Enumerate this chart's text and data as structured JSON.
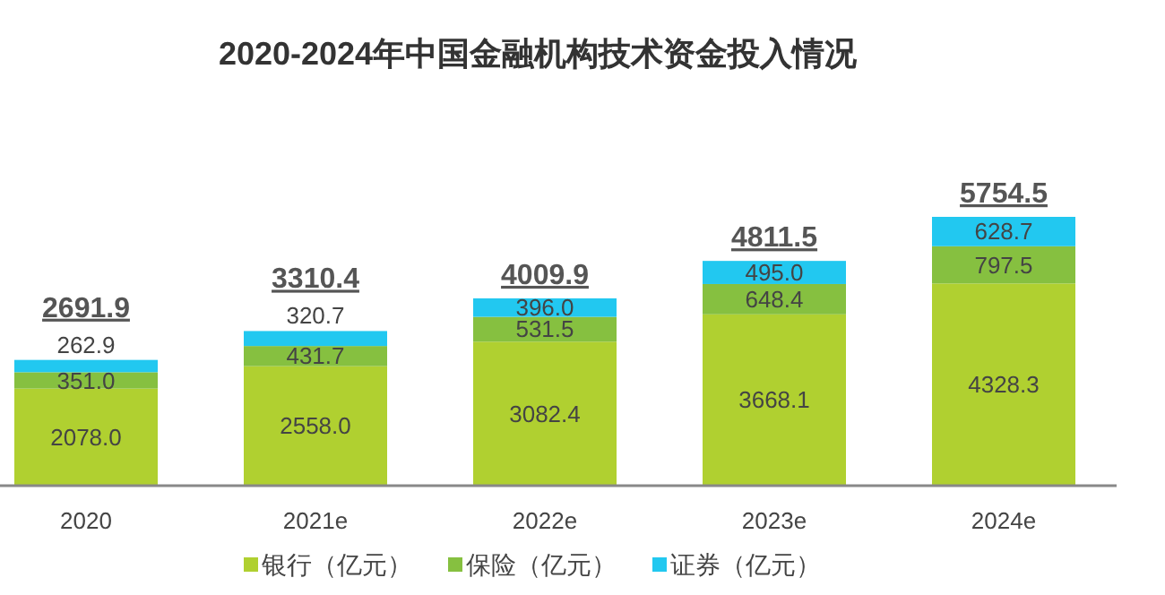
{
  "chart_data": {
    "type": "bar",
    "title": "2020-2024年中国金融机构技术资金投入情况",
    "stacked": true,
    "legend": "bottom",
    "categories": [
      "2020",
      "2021e",
      "2022e",
      "2023e",
      "2024e"
    ],
    "series": [
      {
        "name": "银行（亿元）",
        "color": "#b0d030",
        "values": [
          2078.0,
          2558.0,
          3082.4,
          3668.1,
          4328.3
        ],
        "value_labels": [
          "2078.0",
          "2558.0",
          "3082.4",
          "3668.1",
          "4328.3"
        ]
      },
      {
        "name": "保险（亿元）",
        "color": "#86c040",
        "values": [
          351.0,
          431.7,
          531.5,
          648.4,
          797.5
        ],
        "value_labels": [
          "351.0",
          "431.7",
          "531.5",
          "648.4",
          "797.5"
        ]
      },
      {
        "name": "证券（亿元）",
        "color": "#22c8f0",
        "values": [
          262.9,
          320.7,
          396.0,
          495.0,
          628.7
        ],
        "value_labels": [
          "262.9",
          "320.7",
          "396.0",
          "495.0",
          "628.7"
        ]
      }
    ],
    "totals": [
      "2691.9",
      "3310.4",
      "4009.9",
      "4811.5",
      "5754.5"
    ]
  }
}
